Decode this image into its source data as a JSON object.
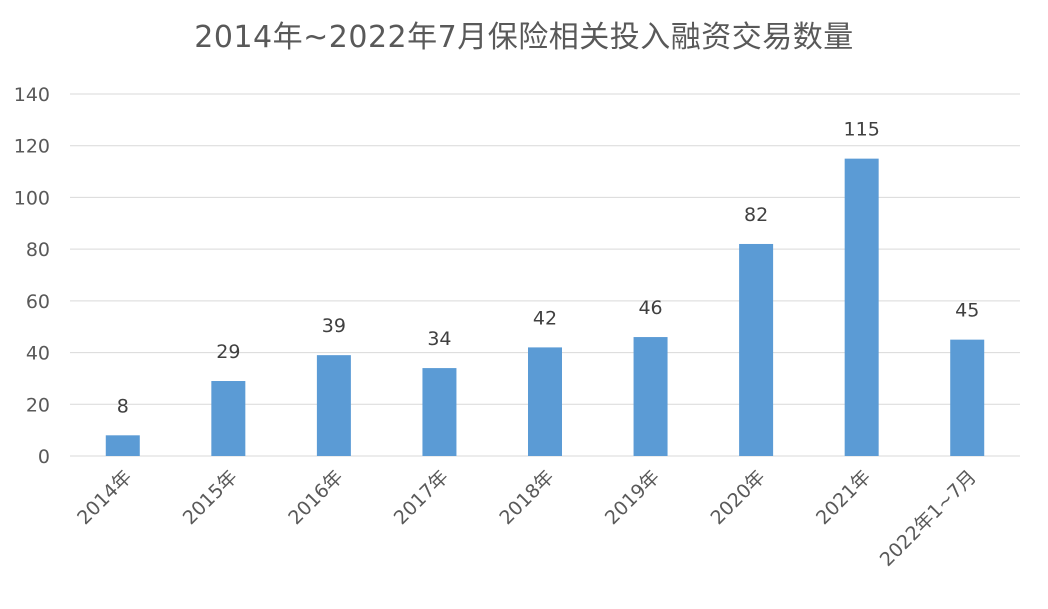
{
  "chart_data": {
    "type": "bar",
    "title": "2014年~2022年7月保险相关投入融资交易数量",
    "xlabel": "",
    "ylabel": "",
    "categories": [
      "2014年",
      "2015年",
      "2016年",
      "2017年",
      "2018年",
      "2019年",
      "2020年",
      "2021年",
      "2022年1~7月"
    ],
    "values": [
      8,
      29,
      39,
      34,
      42,
      46,
      82,
      115,
      45
    ],
    "data_labels": [
      "8",
      "29",
      "39",
      "34",
      "42",
      "46",
      "82",
      "115",
      "45"
    ],
    "ylim": [
      0,
      140
    ],
    "yticks": [
      0,
      20,
      40,
      60,
      80,
      100,
      120,
      140
    ],
    "ytick_labels": [
      "0",
      "20",
      "40",
      "60",
      "80",
      "100",
      "120",
      "140"
    ],
    "grid": true,
    "legend": "none",
    "bar_color": "#5b9bd5"
  }
}
